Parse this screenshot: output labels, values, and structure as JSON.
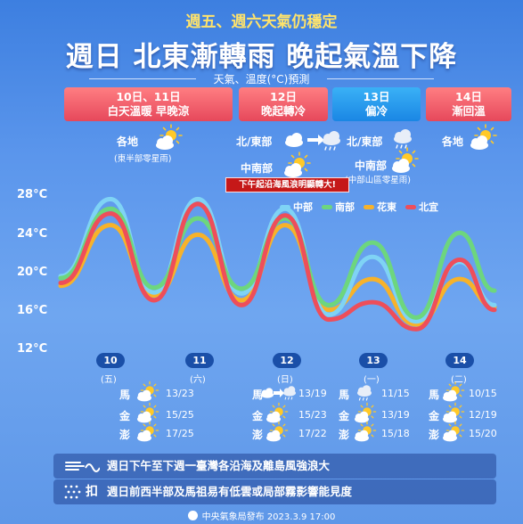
{
  "header": {
    "subtitle": "週五、週六天氣仍穩定",
    "title": "週日 北東漸轉雨 晚起氣溫下降",
    "unit_label": "天氣、溫度(°C)預測"
  },
  "bands": [
    {
      "line1": "10日、11日",
      "line2": "白天溫暖 早晚涼",
      "tone": "warm"
    },
    {
      "line1": "12日",
      "line2": "晚起轉冷",
      "tone": "warm"
    },
    {
      "line1": "13日",
      "line2": "偏冷",
      "tone": "cool"
    },
    {
      "line1": "14日",
      "line2": "漸回溫",
      "tone": "warm"
    }
  ],
  "forecast": {
    "d10_area": "各地",
    "d10_note": "(東半部零星雨)",
    "d12_north": "北/東部",
    "d12_central": "中南部",
    "d13_north": "北/東部",
    "d13_central": "中南部",
    "d13_note": "(中部山區零星雨)",
    "d14_area": "各地",
    "warning": "下午起沿海風浪明顯轉大!"
  },
  "colors": {
    "central": "#7fd3f5",
    "south": "#6dd67e",
    "east": "#f7b22a",
    "north": "#ee4e5a"
  },
  "chart_data": {
    "type": "line",
    "y_ticks": [
      "28°C",
      "24°C",
      "20°C",
      "16°C",
      "12°C"
    ],
    "ylim": [
      12,
      28
    ],
    "x_days": [
      "10",
      "11",
      "12",
      "13",
      "14"
    ],
    "weekdays": [
      "(五)",
      "(六)",
      "(日)",
      "(一)",
      "(二)"
    ],
    "x_points": [
      9.5,
      10.0,
      10.5,
      11.0,
      11.5,
      12.0,
      12.5,
      13.0,
      13.5,
      14.0,
      14.5
    ],
    "series": [
      {
        "name": "中部",
        "color_key": "central",
        "values": [
          19.5,
          27.5,
          17.8,
          27.5,
          17.7,
          26.5,
          15.5,
          21.5,
          14.8,
          21.0,
          16.5
        ]
      },
      {
        "name": "南部",
        "color_key": "south",
        "values": [
          19.3,
          26.5,
          18.3,
          25.5,
          18.2,
          25.5,
          16.5,
          23.0,
          15.2,
          24.0,
          18.0
        ]
      },
      {
        "name": "花東",
        "color_key": "east",
        "values": [
          18.5,
          24.8,
          17.5,
          23.8,
          17.0,
          24.8,
          16.0,
          19.2,
          14.5,
          19.2,
          16.3
        ]
      },
      {
        "name": "北宜",
        "color_key": "north",
        "values": [
          18.8,
          26.0,
          17.0,
          27.0,
          16.5,
          25.8,
          15.0,
          16.8,
          14.0,
          21.2,
          16.0
        ]
      }
    ]
  },
  "islands": {
    "names": [
      "馬",
      "金",
      "澎"
    ],
    "d10": [
      "13/23",
      "15/25",
      "17/25"
    ],
    "d12": [
      "13/19",
      "15/23",
      "17/22"
    ],
    "d13": [
      "11/15",
      "13/19",
      "15/18"
    ],
    "d14": [
      "10/15",
      "12/19",
      "15/20"
    ]
  },
  "alerts": {
    "wind": "週日下午至下週一臺灣各沿海及離島風強浪大",
    "haze": "週日前西半部及馬祖易有低雲或局部霧影響能見度",
    "haze_icon_char": "扣"
  },
  "footer": {
    "text": "中央氣象局發布 2023.3.9  17:00"
  }
}
